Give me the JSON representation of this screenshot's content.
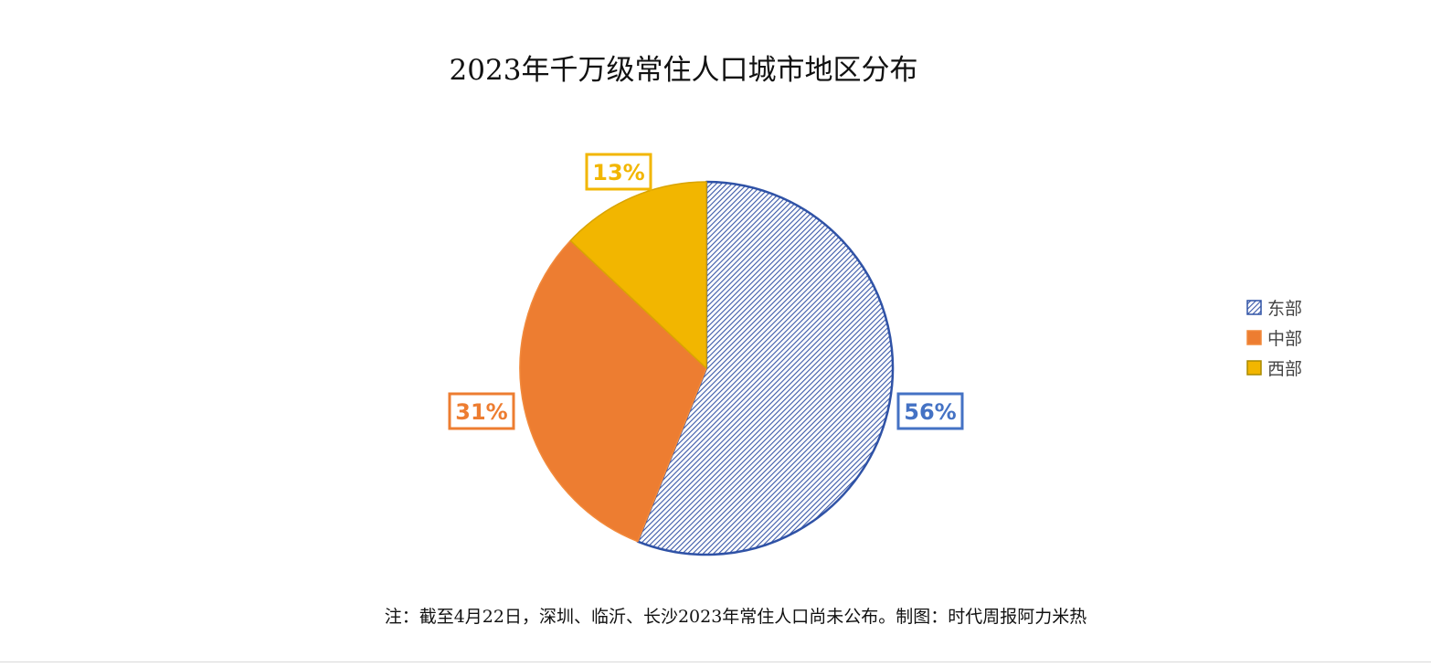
{
  "chart_data": {
    "type": "pie",
    "title": "2023年千万级常住人口城市地区分布",
    "note": "注：截至4月22日，深圳、临沂、长沙2023年常住人口尚未公布。制图：时代周报阿力米热",
    "legend_position": "right",
    "slices": [
      {
        "label": "东部",
        "value": 56,
        "display": "56%",
        "color": "#4472c4",
        "pattern": "diagonal-hatch"
      },
      {
        "label": "中部",
        "value": 31,
        "display": "31%",
        "color": "#ed7d31"
      },
      {
        "label": "西部",
        "value": 13,
        "display": "13%",
        "color": "#f2b600"
      }
    ]
  }
}
